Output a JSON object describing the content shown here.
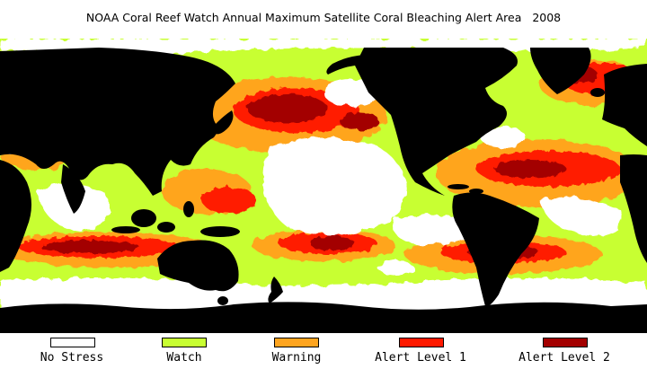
{
  "title": "NOAA Coral Reef Watch Annual Maximum Satellite Coral Bleaching Alert Area   2008",
  "legend": [
    {
      "label": "No Stress",
      "color": "#ffffff"
    },
    {
      "label": "Watch",
      "color": "#c8ff32"
    },
    {
      "label": "Warning",
      "color": "#ffa51f"
    },
    {
      "label": "Alert Level 1",
      "color": "#ff1a00"
    },
    {
      "label": "Alert Level 2",
      "color": "#a30000"
    }
  ],
  "colors": {
    "land": "#000000",
    "ice": "#ffffff",
    "ocean_watch": "#c8ff32",
    "ocean_warning": "#ffa51f",
    "ocean_alert1": "#ff1a00",
    "ocean_alert2": "#a30000"
  }
}
